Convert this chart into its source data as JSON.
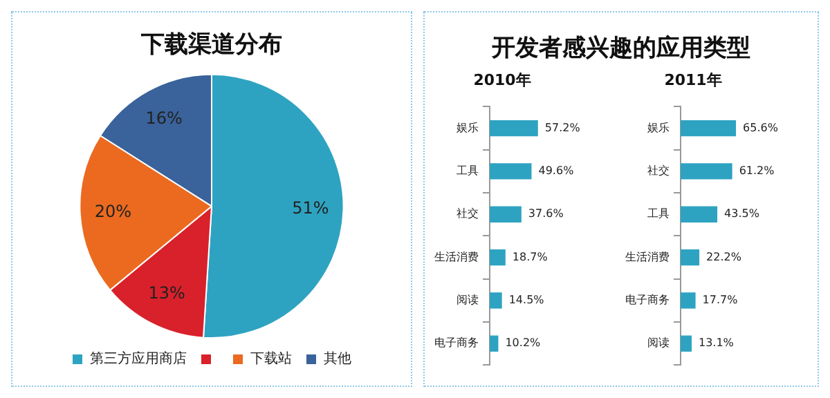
{
  "chart_data": [
    {
      "type": "pie",
      "title": "下载渠道分布",
      "categories": [
        "第三方应用商店",
        null,
        "下载站",
        "其他"
      ],
      "values": [
        51,
        13,
        20,
        16
      ],
      "colors": [
        "#2ea3c1",
        "#d9212b",
        "#eb6a1f",
        "#3a629b"
      ],
      "value_labels": [
        "51%",
        "13%",
        "20%",
        "16%"
      ],
      "legend": "bottom"
    },
    {
      "type": "bar",
      "orientation": "horizontal",
      "title": "开发者感兴趣的应用类型",
      "subtitle": "2010年",
      "categories": [
        "娱乐",
        "工具",
        "社交",
        "生活消费",
        "阅读",
        "电子商务"
      ],
      "values": [
        57.2,
        49.6,
        37.6,
        18.7,
        14.5,
        10.2
      ],
      "color": "#2ea3c1",
      "value_labels": [
        "57.2%",
        "49.6%",
        "37.6%",
        "18.7%",
        "14.5%",
        "10.2%"
      ],
      "tick_labels": "y"
    },
    {
      "type": "bar",
      "orientation": "horizontal",
      "title": "2011年",
      "categories": [
        "娱乐",
        "社交",
        "工具",
        "生活消费",
        "电子商务",
        "阅读"
      ],
      "values": [
        65.6,
        61.2,
        43.5,
        22.2,
        17.7,
        13.1
      ],
      "color": "#2ea3c1",
      "value_labels": [
        "65.6%",
        "61.2%",
        "43.5%",
        "22.2%",
        "17.7%",
        "13.1%"
      ],
      "tick_labels": "y"
    }
  ]
}
